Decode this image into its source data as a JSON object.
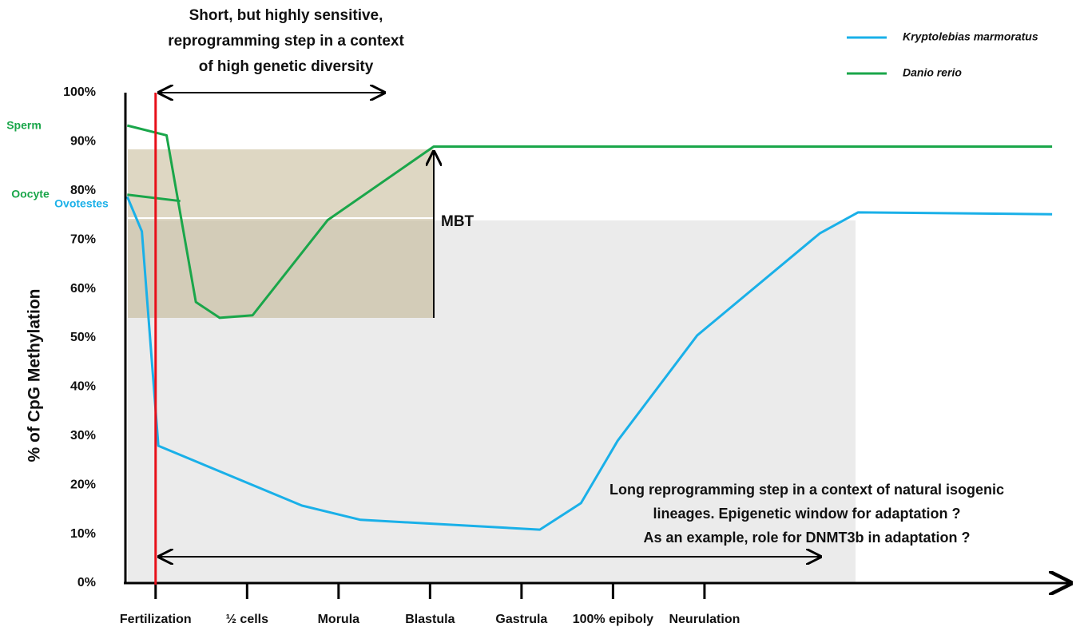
{
  "chart_data": {
    "type": "line",
    "title_lines": [
      "Short, but highly sensitive,",
      "reprogramming step in a context",
      "of high genetic diversity"
    ],
    "y_label": "% of CpG Methylation",
    "xlim": [
      -0.33,
      10
    ],
    "ylim": [
      0,
      100
    ],
    "xticks": [
      {
        "value": 0,
        "label": "Fertilization"
      },
      {
        "value": 1,
        "label": "½ cells"
      },
      {
        "value": 2,
        "label": "Morula"
      },
      {
        "value": 3,
        "label": "Blastula"
      },
      {
        "value": 4,
        "label": "Gastrula"
      },
      {
        "value": 5,
        "label": "100% epiboly"
      },
      {
        "value": 6,
        "label": "Neurulation"
      }
    ],
    "yticks": [
      {
        "value": 0,
        "label": "0%"
      },
      {
        "value": 10,
        "label": "10%"
      },
      {
        "value": 20,
        "label": "20%"
      },
      {
        "value": 30,
        "label": "30%"
      },
      {
        "value": 40,
        "label": "40%"
      },
      {
        "value": 50,
        "label": "50%"
      },
      {
        "value": 60,
        "label": "60%"
      },
      {
        "value": 70,
        "label": "70%"
      },
      {
        "value": 80,
        "label": "80%"
      },
      {
        "value": 90,
        "label": "90%"
      },
      {
        "value": 100,
        "label": "100%"
      }
    ],
    "grid": false,
    "legend": "top-right",
    "series": [
      {
        "name": "Kryptolebias marmoratus",
        "color": "#1ab0e8",
        "x": [
          -0.31,
          -0.15,
          0.03,
          1.6,
          2.24,
          4.2,
          4.65,
          5.05,
          5.92,
          7.26,
          7.68,
          9.8
        ],
        "values": [
          78.8,
          71.7,
          28.0,
          15.8,
          12.9,
          10.9,
          16.3,
          29.0,
          50.5,
          71.3,
          75.6,
          75.2
        ]
      },
      {
        "name": "Danio rerio",
        "color": "#1aa64a",
        "x": [
          -0.31,
          0.12,
          0.44,
          0.7,
          1.06,
          1.88,
          3.04,
          9.8,
          null,
          -0.31,
          0.27
        ],
        "values": [
          93.3,
          91.3,
          57.3,
          54.1,
          54.6,
          74.0,
          89.0,
          89.0,
          null,
          79.2,
          77.9
        ]
      }
    ],
    "fertilization_line_color": "#e8101a",
    "labels": {
      "sperm": "Sperm",
      "oocyte": "Oocyte",
      "ovotestes": "Ovotestes",
      "mbt": "MBT"
    },
    "note_lines": [
      "Long reprogramming step  in a context of natural isogenic",
      "lineages. Epigenetic window for adaptation ?",
      "As an example, role for DNMT3b in adaptation ?"
    ]
  }
}
